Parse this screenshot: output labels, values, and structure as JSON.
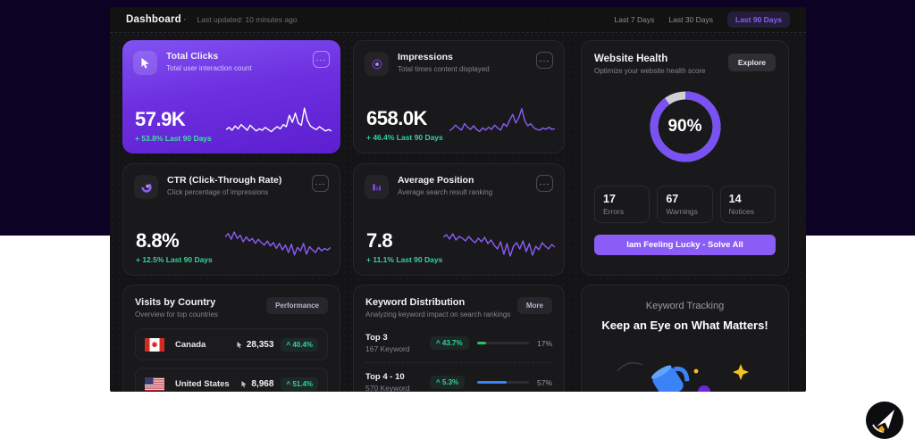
{
  "topbar": {
    "title": "Dashboard",
    "dot": "·",
    "updated": "Last updated: 10 minutes ago",
    "periods": [
      {
        "label": "Last 7 Days"
      },
      {
        "label": "Last 30 Days"
      },
      {
        "label": "Last 90 Days"
      }
    ]
  },
  "icons": {
    "ellipsis": "···"
  },
  "cards": {
    "total_clicks": {
      "title": "Total Clicks",
      "subtitle": "Total user interaction count",
      "value": "57.9K",
      "change": "+ 53.8% Last 90 Days",
      "spark_color": "#ffffff",
      "spark": [
        32,
        38,
        30,
        42,
        34,
        46,
        38,
        30,
        44,
        36,
        28,
        34,
        30,
        38,
        32,
        26,
        34,
        40,
        34,
        46,
        40,
        72,
        52,
        78,
        50,
        44,
        92,
        58,
        42,
        36,
        32,
        40,
        34,
        28,
        32,
        28
      ]
    },
    "impressions": {
      "title": "Impressions",
      "subtitle": "Total times content displayed",
      "value": "658.0K",
      "change": "+ 46.4% Last 90 Days",
      "spark_color": "#8b5cf6",
      "spark": [
        26,
        32,
        42,
        34,
        28,
        46,
        36,
        30,
        40,
        30,
        24,
        34,
        28,
        36,
        30,
        42,
        34,
        28,
        46,
        38,
        56,
        72,
        48,
        62,
        88,
        54,
        40,
        46,
        34,
        30,
        28,
        34,
        30,
        36,
        30,
        32
      ]
    },
    "ctr": {
      "title": "CTR (Click-Through Rate)",
      "subtitle": "Click percentage of impressions",
      "value": "8.8%",
      "change": "+ 12.5% Last 90 Days",
      "spark_color": "#8b5cf6",
      "spark": [
        62,
        70,
        56,
        74,
        58,
        66,
        50,
        62,
        52,
        58,
        46,
        56,
        48,
        42,
        52,
        40,
        48,
        34,
        46,
        30,
        42,
        24,
        44,
        18,
        36,
        28,
        46,
        20,
        38,
        30,
        24,
        36,
        28,
        34,
        30,
        36
      ]
    },
    "avg_position": {
      "title": "Average Position",
      "subtitle": "Average search result ranking",
      "value": "7.8",
      "change": "+ 11.1% Last 90 Days",
      "spark_color": "#8b5cf6",
      "spark": [
        56,
        62,
        52,
        64,
        50,
        58,
        54,
        48,
        58,
        50,
        44,
        54,
        46,
        56,
        42,
        50,
        38,
        30,
        46,
        18,
        42,
        14,
        36,
        44,
        30,
        48,
        24,
        42,
        16,
        36,
        28,
        44,
        36,
        30,
        40,
        34
      ]
    },
    "health": {
      "title": "Website Health",
      "subtitle": "Optimize your website health score",
      "explore_label": "Explore",
      "score_label": "90%",
      "score_pct": 90,
      "ring_color": "#7a52f4",
      "stats": [
        {
          "value": "17",
          "label": "Errors"
        },
        {
          "value": "67",
          "label": "Warnings"
        },
        {
          "value": "14",
          "label": "Notices"
        }
      ],
      "cta_label": "Iam Feeling Lucky - Solve All"
    },
    "country": {
      "title": "Visits by Country",
      "subtitle": "Overview for top countries",
      "button_label": "Performance",
      "rows": [
        {
          "name": "Canada",
          "visits": "28,353",
          "change": "^ 40.4%"
        },
        {
          "name": "United States",
          "visits": "8,968",
          "change": "^ 51.4%"
        }
      ]
    },
    "keywords": {
      "title": "Keyword Distribution",
      "subtitle": "Analyzing keyword impact on search rankings",
      "button_label": "More",
      "rows": [
        {
          "name": "Top 3",
          "count": "167 Keyword",
          "change": "^ 43.7%",
          "pct_label": "17%",
          "pct": 17,
          "bar_color": "#22c55e"
        },
        {
          "name": "Top 4 - 10",
          "count": "570 Keyword",
          "change": "^ 5.3%",
          "pct_label": "57%",
          "pct": 57,
          "bar_color": "#3b82f6"
        }
      ]
    },
    "tracking": {
      "eyebrow": "Keyword Tracking",
      "heading": "Keep an Eye on What Matters!"
    }
  }
}
